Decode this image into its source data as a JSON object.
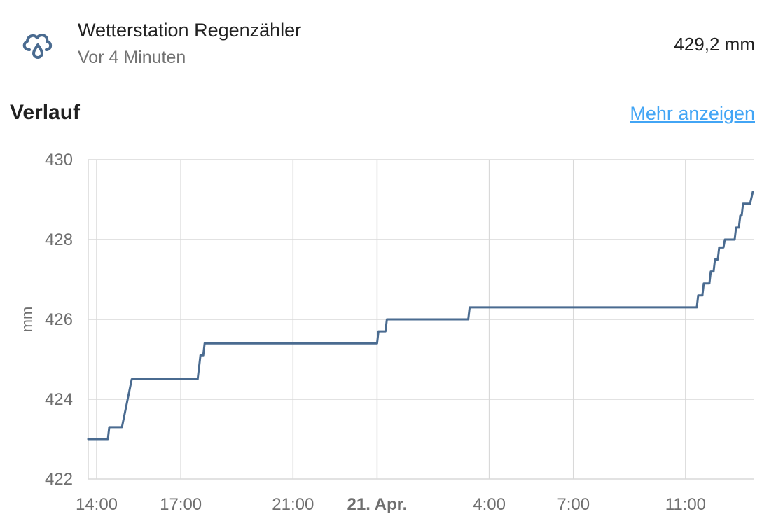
{
  "entity": {
    "icon": "weather-rain-cloud-icon",
    "name": "Wetterstation Regenzähler",
    "last_changed": "Vor 4 Minuten",
    "state": "429,2 mm"
  },
  "history": {
    "title": "Verlauf",
    "more_link": "Mehr anzeigen"
  },
  "colors": {
    "accent_link": "#42a5f5",
    "line": "#4a6b90",
    "icon": "#4a6b90",
    "grid": "#d9d9d9"
  },
  "chart_data": {
    "type": "line",
    "ylabel": "mm",
    "ylim": [
      422,
      430
    ],
    "y_ticks": [
      "430",
      "428",
      "426",
      "424",
      "422"
    ],
    "y_tick_values": [
      430,
      428,
      426,
      424,
      422
    ],
    "x_ticks": [
      {
        "label": "14:00",
        "bold": false
      },
      {
        "label": "17:00",
        "bold": false
      },
      {
        "label": "21:00",
        "bold": false
      },
      {
        "label": "21. Apr.",
        "bold": true
      },
      {
        "label": "4:00",
        "bold": false
      },
      {
        "label": "7:00",
        "bold": false
      },
      {
        "label": "11:00",
        "bold": false
      }
    ],
    "x_tick_hours": [
      14,
      17,
      21,
      24,
      28,
      31,
      35
    ],
    "xlim_hours": [
      13.7,
      37.45
    ],
    "series": [
      {
        "values": [
          [
            13.7,
            423.0
          ],
          [
            14.4,
            423.0
          ],
          [
            14.45,
            423.3
          ],
          [
            14.9,
            423.3
          ],
          [
            15.25,
            424.5
          ],
          [
            17.6,
            424.5
          ],
          [
            17.7,
            425.1
          ],
          [
            17.8,
            425.1
          ],
          [
            17.85,
            425.4
          ],
          [
            24.0,
            425.4
          ],
          [
            24.05,
            425.7
          ],
          [
            24.3,
            425.7
          ],
          [
            24.35,
            426.0
          ],
          [
            27.25,
            426.0
          ],
          [
            27.3,
            426.3
          ],
          [
            35.4,
            426.3
          ],
          [
            35.45,
            426.6
          ],
          [
            35.6,
            426.6
          ],
          [
            35.65,
            426.9
          ],
          [
            35.85,
            426.9
          ],
          [
            35.9,
            427.2
          ],
          [
            36.0,
            427.2
          ],
          [
            36.05,
            427.5
          ],
          [
            36.15,
            427.5
          ],
          [
            36.2,
            427.8
          ],
          [
            36.35,
            427.8
          ],
          [
            36.4,
            428.0
          ],
          [
            36.75,
            428.0
          ],
          [
            36.8,
            428.3
          ],
          [
            36.9,
            428.3
          ],
          [
            36.95,
            428.6
          ],
          [
            37.0,
            428.6
          ],
          [
            37.05,
            428.9
          ],
          [
            37.3,
            428.9
          ],
          [
            37.4,
            429.2
          ]
        ]
      }
    ]
  }
}
